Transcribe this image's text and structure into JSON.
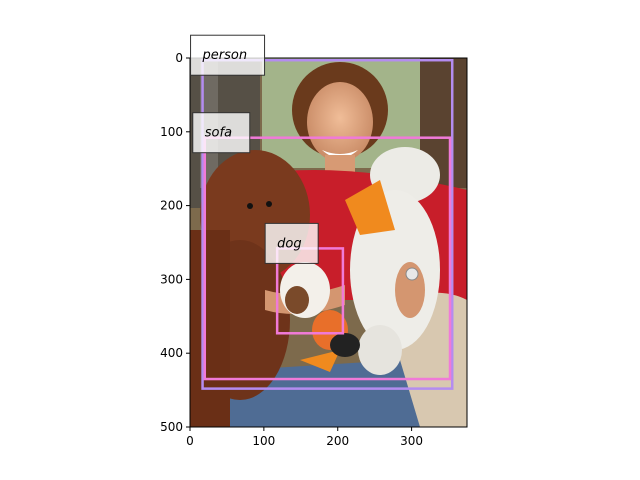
{
  "image": {
    "width": 375,
    "height": 500,
    "description_colors": {
      "wall": "#7d6a4c",
      "window": "#a8b892",
      "shirt": "#c81e2a",
      "plush_brown": "#7a3a1e",
      "plush_white": "#ecebe6",
      "beak": "#f08a1e",
      "jeans": "#4f6c94",
      "skin": "#e0a882",
      "hair": "#6a3a1c",
      "couch": "#d8c8b0"
    }
  },
  "axes": {
    "x_ticks": [
      "0",
      "100",
      "200",
      "300"
    ],
    "x_tick_values": [
      0,
      100,
      200,
      300
    ],
    "y_ticks": [
      "0",
      "100",
      "200",
      "300",
      "400",
      "500"
    ],
    "y_tick_values": [
      0,
      100,
      200,
      300,
      400,
      500
    ]
  },
  "boxes": [
    {
      "label": "person",
      "color": "#b48cf0",
      "x0": 17,
      "y0": 3,
      "x1": 355,
      "y1": 448
    },
    {
      "label": "sofa",
      "color": "#f07ad8",
      "x0": 20,
      "y0": 108,
      "x1": 352,
      "y1": 435
    },
    {
      "label": "dog",
      "color": "#f07ad8",
      "x0": 118,
      "y0": 258,
      "x1": 207,
      "y1": 373
    }
  ],
  "labels": {
    "person": "person",
    "sofa": "sofa",
    "dog": "dog"
  }
}
